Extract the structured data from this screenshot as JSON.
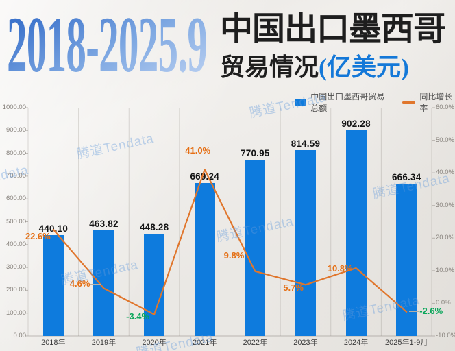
{
  "title": {
    "period": "2018-2025.9",
    "main": "中国出口墨西哥",
    "sub": "贸易情况",
    "unit": "(亿美元)"
  },
  "legend": {
    "bar_label": "中国出口墨西哥贸易总额",
    "line_label": "同比增长率"
  },
  "watermark_text": "腾道Tendata",
  "colors": {
    "bar": "#0e7bdd",
    "line": "#e0762c",
    "positive_label": "#e56f14",
    "negative_label": "#09a65a",
    "title_unit_blue": "#1478d8",
    "period_blue": "#4f86d6",
    "value_label": "#141414"
  },
  "chart_data": {
    "type": "bar+line",
    "title": "2018-2025.9 中国出口墨西哥贸易情况(亿美元)",
    "categories": [
      "2018年",
      "2019年",
      "2020年",
      "2021年",
      "2022年",
      "2023年",
      "2024年",
      "2025年1-9月"
    ],
    "series": [
      {
        "name": "中国出口墨西哥贸易总额",
        "type": "bar",
        "axis": "left",
        "values": [
          440.1,
          463.82,
          448.28,
          669.24,
          770.95,
          814.59,
          902.28,
          666.34
        ],
        "labels": [
          "440.10",
          "463.82",
          "448.28",
          "669.24",
          "770.95",
          "814.59",
          "902.28",
          "666.34"
        ]
      },
      {
        "name": "同比增长率",
        "type": "line",
        "axis": "right",
        "values": [
          22.6,
          4.6,
          -3.4,
          41.0,
          9.8,
          5.7,
          10.8,
          -2.6
        ],
        "labels": [
          "22.6%",
          "4.6%",
          "-3.4%",
          "41.0%",
          "9.8%",
          "5.7%",
          "10.8%",
          "-2.6%"
        ]
      }
    ],
    "left_axis": {
      "min": 0,
      "max": 1000,
      "step": 100,
      "tick_labels": [
        "1000.00",
        "900.00",
        "800.00",
        "700.00",
        "600.00",
        "500.00",
        "400.00",
        "300.00",
        "200.00",
        "100.00",
        "0.00"
      ]
    },
    "right_axis": {
      "min": -10,
      "max": 60,
      "step": 10,
      "tick_labels": [
        "60.0%",
        "50.0%",
        "40.0%",
        "30.0%",
        "20.0%",
        "10.0%",
        "0.0%",
        "-10.0%"
      ]
    },
    "grid": "vertical category separators, bottom axis line",
    "legend_position": "top-right"
  }
}
